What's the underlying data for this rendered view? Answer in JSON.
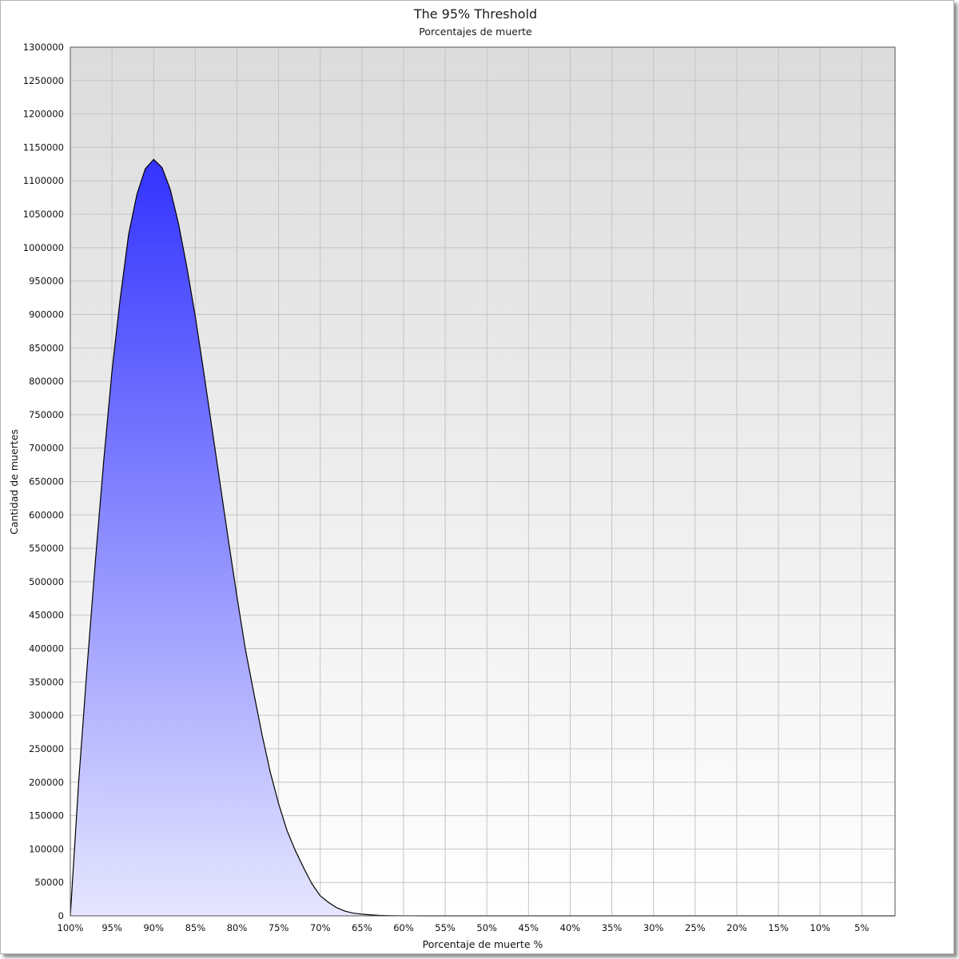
{
  "chart_data": {
    "type": "area",
    "title": "The 95% Threshold",
    "subtitle": "Porcentajes de muerte",
    "xlabel": "Porcentaje de muerte %",
    "ylabel": "Cantidad de muertes",
    "x_tick_labels": [
      "100%",
      "95%",
      "90%",
      "85%",
      "80%",
      "75%",
      "70%",
      "65%",
      "60%",
      "55%",
      "50%",
      "45%",
      "40%",
      "35%",
      "30%",
      "25%",
      "20%",
      "15%",
      "10%",
      "5%"
    ],
    "y_tick_labels": [
      "0",
      "50000",
      "100000",
      "150000",
      "200000",
      "250000",
      "300000",
      "350000",
      "400000",
      "450000",
      "500000",
      "550000",
      "600000",
      "650000",
      "700000",
      "750000",
      "800000",
      "850000",
      "900000",
      "950000",
      "1000000",
      "1050000",
      "1100000",
      "1150000",
      "1200000",
      "1250000",
      "1300000"
    ],
    "xlim": [
      100,
      1
    ],
    "ylim": [
      0,
      1300000
    ],
    "grid": true,
    "fill_colors": {
      "top": "#3333ff",
      "bottom": "#e6e6ff"
    },
    "line_color": "#000000",
    "background_gradient": {
      "top": "#dcdcdc",
      "bottom": "#ffffff"
    },
    "series": [
      {
        "x": [
          100,
          99,
          98,
          97,
          96,
          95,
          94,
          93,
          92,
          91,
          90,
          89,
          88,
          87,
          86,
          85,
          84,
          83,
          82,
          81,
          80,
          79,
          78,
          77,
          76,
          75,
          74,
          73,
          72,
          71,
          70,
          69,
          68,
          67,
          66,
          65,
          64,
          63,
          62,
          61,
          60,
          59,
          58,
          57,
          56,
          55,
          54,
          53,
          52,
          51,
          50,
          49,
          48,
          47,
          46,
          45,
          44,
          43,
          42,
          41,
          40,
          39,
          38,
          37,
          36,
          35,
          34,
          33,
          32,
          31,
          30,
          29,
          28,
          27,
          26,
          25,
          24,
          23,
          22,
          21,
          20,
          19,
          18,
          17,
          16,
          15,
          14,
          13,
          12,
          11,
          10,
          9,
          8,
          7,
          6,
          5,
          4,
          3,
          2,
          1
        ],
        "values": [
          0,
          200000,
          370000,
          530000,
          680000,
          815000,
          925000,
          1020000,
          1080000,
          1118000,
          1132000,
          1120000,
          1087000,
          1035000,
          970000,
          897000,
          815000,
          730000,
          645000,
          560000,
          478000,
          400000,
          335000,
          272000,
          215000,
          168000,
          128000,
          98000,
          72000,
          48000,
          30000,
          20000,
          12000,
          7000,
          4000,
          2500,
          1500,
          800,
          400,
          200,
          100,
          50,
          30,
          20,
          10,
          0,
          0,
          0,
          0,
          0,
          0,
          0,
          0,
          0,
          0,
          0,
          0,
          0,
          0,
          0,
          0,
          0,
          0,
          0,
          0,
          0,
          0,
          0,
          0,
          0,
          0,
          0,
          0,
          0,
          0,
          0,
          0,
          0,
          0,
          0,
          0,
          0,
          0,
          0,
          0,
          0,
          0,
          0,
          0,
          0,
          0,
          0,
          0,
          0,
          0,
          0,
          0,
          0,
          0,
          0
        ]
      }
    ]
  }
}
